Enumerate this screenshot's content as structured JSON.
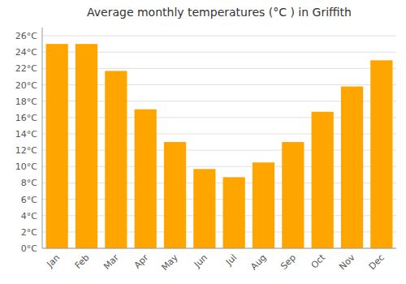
{
  "chart_data": {
    "type": "bar",
    "title": "Average monthly temperatures (°C ) in Griffith",
    "categories": [
      "Jan",
      "Feb",
      "Mar",
      "Apr",
      "May",
      "Jun",
      "Jul",
      "Aug",
      "Sep",
      "Oct",
      "Nov",
      "Dec"
    ],
    "values": [
      25.0,
      25.0,
      21.7,
      17.0,
      13.0,
      9.7,
      8.7,
      10.5,
      13.0,
      16.7,
      19.8,
      23.0
    ],
    "color": "#FFA500",
    "ylim": [
      0,
      27
    ],
    "yticks": [
      {
        "value": 0,
        "label": "0°C"
      },
      {
        "value": 2,
        "label": "2°C"
      },
      {
        "value": 4,
        "label": "4°C"
      },
      {
        "value": 6,
        "label": "6°C"
      },
      {
        "value": 8,
        "label": "8°C"
      },
      {
        "value": 10,
        "label": "10°C"
      },
      {
        "value": 12,
        "label": "12°C"
      },
      {
        "value": 14,
        "label": "14°C"
      },
      {
        "value": 16,
        "label": "16°C"
      },
      {
        "value": 18,
        "label": "18°C"
      },
      {
        "value": 20,
        "label": "20°C"
      },
      {
        "value": 22,
        "label": "22°C"
      },
      {
        "value": 24,
        "label": "24°C"
      },
      {
        "value": 26,
        "label": "26°C"
      }
    ],
    "grid": true
  }
}
